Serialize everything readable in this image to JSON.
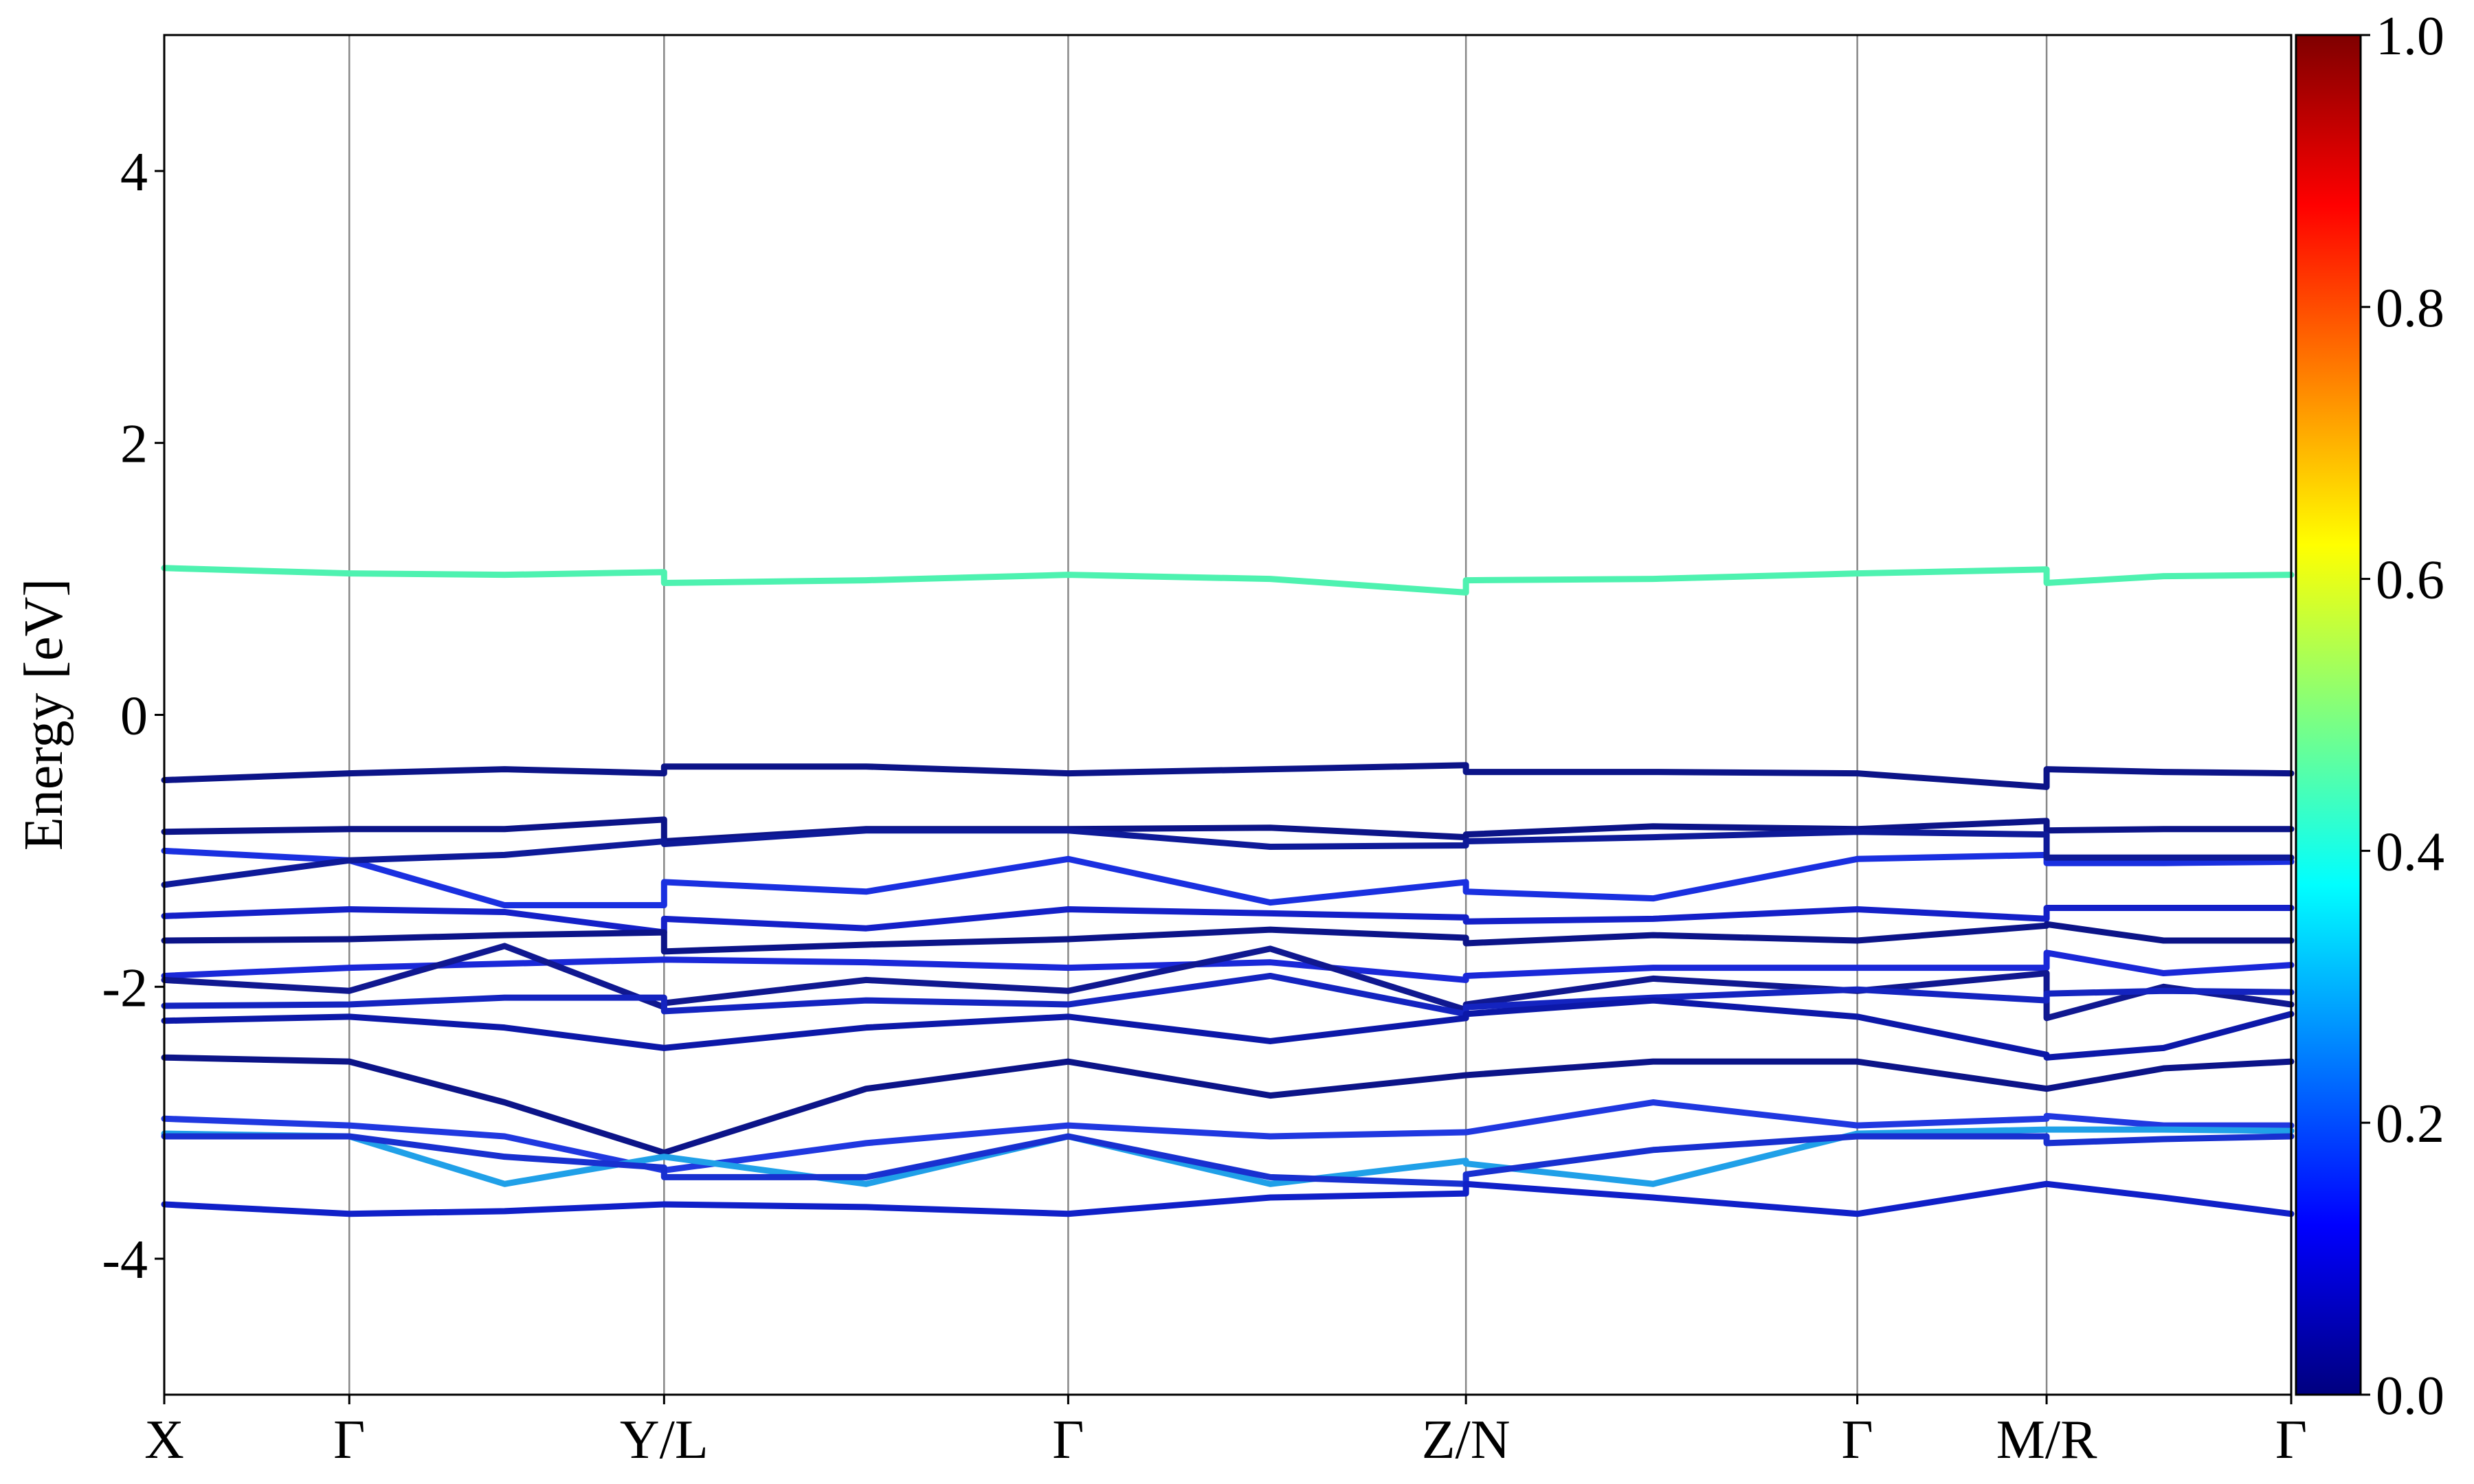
{
  "chart_data": {
    "type": "line",
    "ylabel": "Energy [eV]",
    "xlim": [
      0,
      1
    ],
    "ylim": [
      -5,
      5
    ],
    "yticks": [
      -4,
      -2,
      0,
      2,
      4
    ],
    "xticks": [
      {
        "value": 0,
        "label": "X"
      },
      {
        "value": 0.087,
        "label": "Γ"
      },
      {
        "value": 0.235,
        "label": "Y/L"
      },
      {
        "value": 0.425,
        "label": "Γ"
      },
      {
        "value": 0.612,
        "label": "Z/N"
      },
      {
        "value": 0.796,
        "label": "Γ"
      },
      {
        "value": 0.885,
        "label": "M/R"
      },
      {
        "value": 1,
        "label": "Γ"
      }
    ],
    "grid": "x",
    "x": [
      0,
      0.087,
      0.16,
      0.235,
      0.235,
      0.33,
      0.425,
      0.52,
      0.612,
      0.612,
      0.7,
      0.796,
      0.885,
      0.885,
      0.94,
      1
    ],
    "series": [
      {
        "color": "#4ef2b0",
        "values": [
          1.08,
          1.04,
          1.03,
          1.05,
          0.97,
          0.99,
          1.03,
          1.0,
          0.9,
          0.99,
          1.0,
          1.04,
          1.07,
          0.97,
          1.02,
          1.03
        ]
      },
      {
        "color": "#0c1488",
        "values": [
          -0.48,
          -0.43,
          -0.4,
          -0.43,
          -0.38,
          -0.38,
          -0.43,
          -0.4,
          -0.37,
          -0.42,
          -0.42,
          -0.43,
          -0.53,
          -0.4,
          -0.42,
          -0.43
        ]
      },
      {
        "color": "#0c1488",
        "values": [
          -0.86,
          -0.84,
          -0.84,
          -0.77,
          -0.93,
          -0.84,
          -0.84,
          -0.83,
          -0.9,
          -0.88,
          -0.82,
          -0.84,
          -0.78,
          -0.85,
          -0.84,
          -0.84
        ]
      },
      {
        "color": "#1a30e0",
        "values": [
          -1.0,
          -1.07,
          -1.4,
          -1.4,
          -1.23,
          -1.3,
          -1.06,
          -1.38,
          -1.23,
          -1.3,
          -1.35,
          -1.06,
          -1.03,
          -1.09,
          -1.09,
          -1.08
        ]
      },
      {
        "color": "#0e1a98",
        "values": [
          -1.25,
          -1.07,
          -1.03,
          -0.93,
          -0.95,
          -0.85,
          -0.85,
          -0.97,
          -0.96,
          -0.93,
          -0.9,
          -0.86,
          -0.88,
          -1.05,
          -1.05,
          -1.05
        ]
      },
      {
        "color": "#1420c8",
        "values": [
          -1.48,
          -1.43,
          -1.45,
          -1.6,
          -1.5,
          -1.57,
          -1.43,
          -1.46,
          -1.49,
          -1.52,
          -1.5,
          -1.43,
          -1.5,
          -1.42,
          -1.42,
          -1.42
        ]
      },
      {
        "color": "#0c1488",
        "values": [
          -1.66,
          -1.65,
          -1.62,
          -1.6,
          -1.74,
          -1.69,
          -1.65,
          -1.58,
          -1.64,
          -1.68,
          -1.62,
          -1.66,
          -1.55,
          -1.54,
          -1.66,
          -1.66
        ]
      },
      {
        "color": "#1a28d8",
        "values": [
          -1.92,
          -1.86,
          -1.83,
          -1.8,
          -1.8,
          -1.82,
          -1.86,
          -1.82,
          -1.95,
          -1.92,
          -1.86,
          -1.86,
          -1.86,
          -1.75,
          -1.9,
          -1.84
        ]
      },
      {
        "color": "#101890",
        "values": [
          -1.95,
          -2.03,
          -1.7,
          -2.15,
          -2.12,
          -1.95,
          -2.03,
          -1.72,
          -2.17,
          -2.13,
          -1.94,
          -2.03,
          -1.9,
          -2.23,
          -2.0,
          -2.13
        ]
      },
      {
        "color": "#1424c0",
        "values": [
          -2.14,
          -2.13,
          -2.08,
          -2.08,
          -2.18,
          -2.1,
          -2.13,
          -1.92,
          -2.2,
          -2.15,
          -2.08,
          -2.02,
          -2.1,
          -2.05,
          -2.03,
          -2.04
        ]
      },
      {
        "color": "#0c18a8",
        "values": [
          -2.25,
          -2.22,
          -2.3,
          -2.45,
          -2.45,
          -2.3,
          -2.22,
          -2.4,
          -2.23,
          -2.2,
          -2.1,
          -2.22,
          -2.5,
          -2.52,
          -2.45,
          -2.2
        ]
      },
      {
        "color": "#0c1488",
        "values": [
          -2.52,
          -2.55,
          -2.85,
          -3.22,
          -3.22,
          -2.75,
          -2.55,
          -2.8,
          -2.65,
          -2.65,
          -2.55,
          -2.55,
          -2.75,
          -2.75,
          -2.6,
          -2.55
        ]
      },
      {
        "color": "#2038e0",
        "values": [
          -2.97,
          -3.02,
          -3.1,
          -3.35,
          -3.35,
          -3.15,
          -3.02,
          -3.1,
          -3.07,
          -3.07,
          -2.85,
          -3.02,
          -2.97,
          -2.95,
          -3.02,
          -3.02
        ]
      },
      {
        "color": "#20a0e8",
        "values": [
          -3.08,
          -3.1,
          -3.45,
          -3.25,
          -3.25,
          -3.45,
          -3.1,
          -3.45,
          -3.28,
          -3.3,
          -3.45,
          -3.08,
          -3.05,
          -3.05,
          -3.05,
          -3.06
        ]
      },
      {
        "color": "#1830d0",
        "values": [
          -3.1,
          -3.1,
          -3.25,
          -3.33,
          -3.4,
          -3.4,
          -3.1,
          -3.4,
          -3.45,
          -3.38,
          -3.2,
          -3.1,
          -3.1,
          -3.15,
          -3.12,
          -3.1
        ]
      },
      {
        "color": "#1020c8",
        "values": [
          -3.6,
          -3.67,
          -3.65,
          -3.6,
          -3.6,
          -3.62,
          -3.67,
          -3.55,
          -3.52,
          -3.45,
          -3.55,
          -3.67,
          -3.45,
          -3.45,
          -3.55,
          -3.67
        ]
      }
    ],
    "colorbar": {
      "colormap": "jet",
      "lim": [
        0,
        1
      ],
      "ticks": [
        {
          "value": 0,
          "label": "0.0"
        },
        0.2,
        0.4,
        0.6,
        0.8,
        {
          "value": 1,
          "label": "1.0"
        }
      ]
    }
  }
}
